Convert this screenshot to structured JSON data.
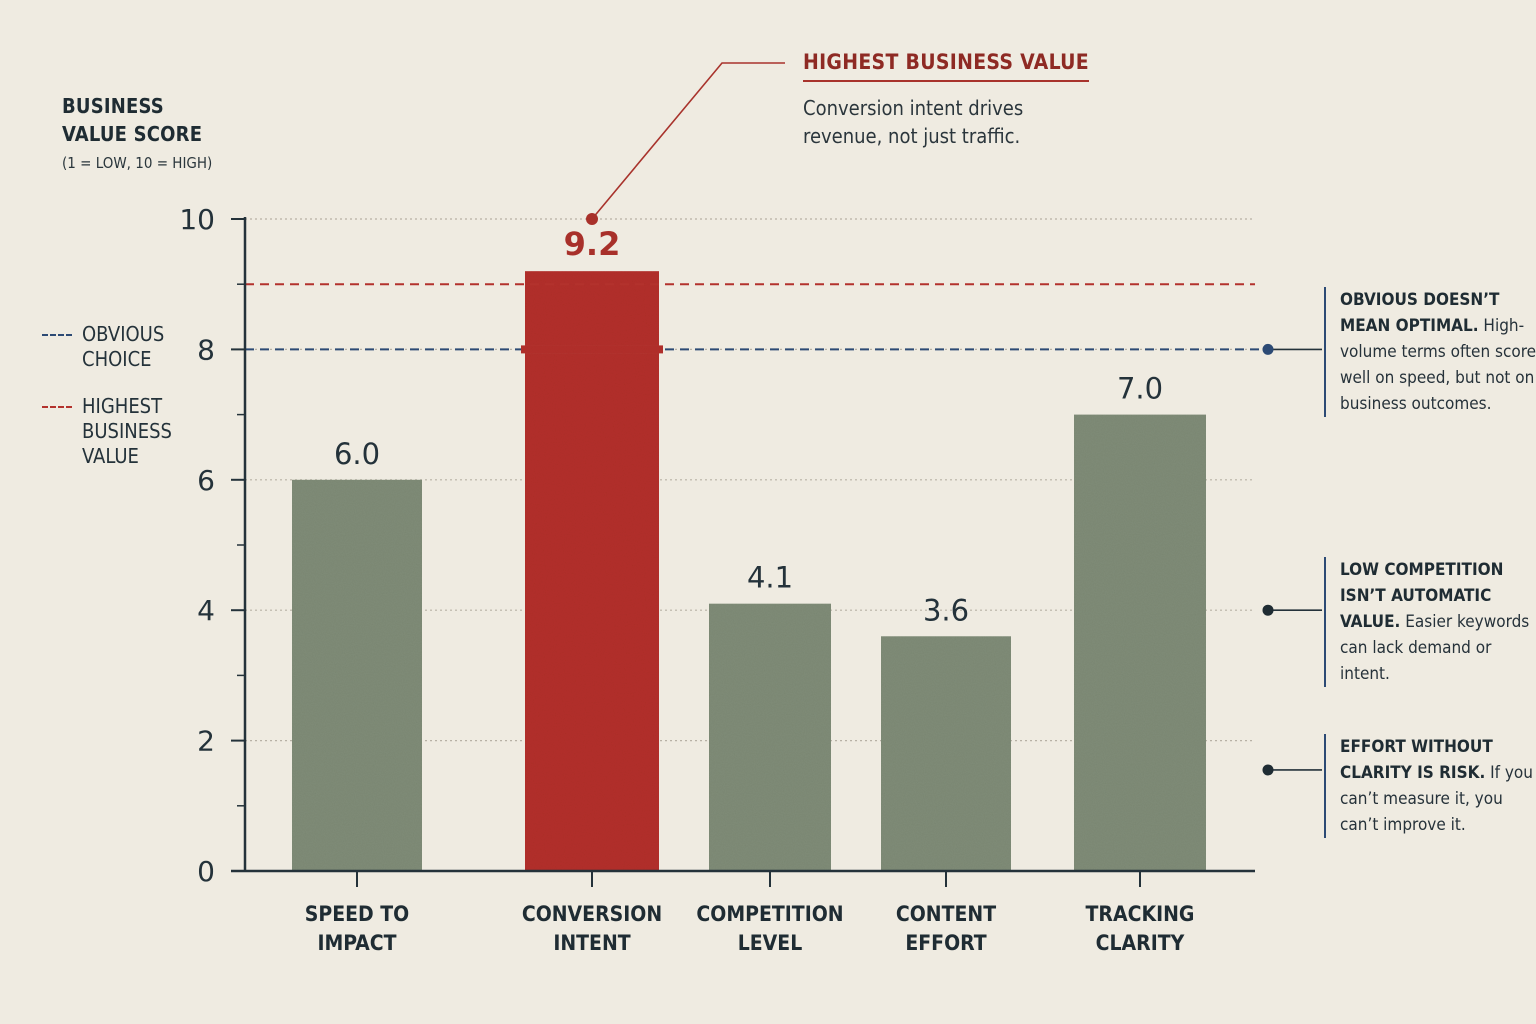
{
  "chart_data": {
    "type": "bar",
    "ylabel": "BUSINESS\nVALUE SCORE",
    "ylabel_sub": "(1 = LOW, 10 = HIGH)",
    "categories": [
      "SPEED TO\nIMPACT",
      "CONVERSION\nINTENT",
      "COMPETITION\nLEVEL",
      "CONTENT\nEFFORT",
      "TRACKING\nCLARITY"
    ],
    "values": [
      6.0,
      9.2,
      4.1,
      3.6,
      7.0
    ],
    "value_labels": [
      "6.0",
      "9.2",
      "4.1",
      "3.6",
      "7.0"
    ],
    "highlight_index": 1,
    "ylim": [
      0,
      10
    ],
    "yticks": [
      0,
      2,
      4,
      6,
      8,
      10
    ],
    "grid": true,
    "reference_lines": [
      {
        "name": "OBVIOUS\nCHOICE",
        "value": 8,
        "color": "#2c4a74"
      },
      {
        "name": "HIGHEST\nBUSINESS\nVALUE",
        "value": 9,
        "color": "#b3322d"
      }
    ],
    "legend_placement": "left",
    "colors": {
      "bar": "#7f8c77",
      "highlight": "#b3302a",
      "axis": "#24323a",
      "grid": "#b7b1a5"
    }
  },
  "annotations": {
    "top": {
      "title": "HIGHEST BUSINESS VALUE",
      "body": "Conversion intent drives revenue, not just traffic."
    },
    "notes": [
      {
        "bold": "OBVIOUS DOESN’T MEAN OPTIMAL.",
        "text": " High-volume terms often score well on speed, but not on business outcomes.",
        "value": 8
      },
      {
        "bold": "LOW COMPETITION ISN’T AUTOMATIC VALUE.",
        "text": " Easier keywords can lack demand or intent.",
        "value": 4
      },
      {
        "bold": "EFFORT WITHOUT CLARITY IS RISK.",
        "text": " If you can’t measure it, you can’t improve it.",
        "value": 1.55
      }
    ]
  }
}
